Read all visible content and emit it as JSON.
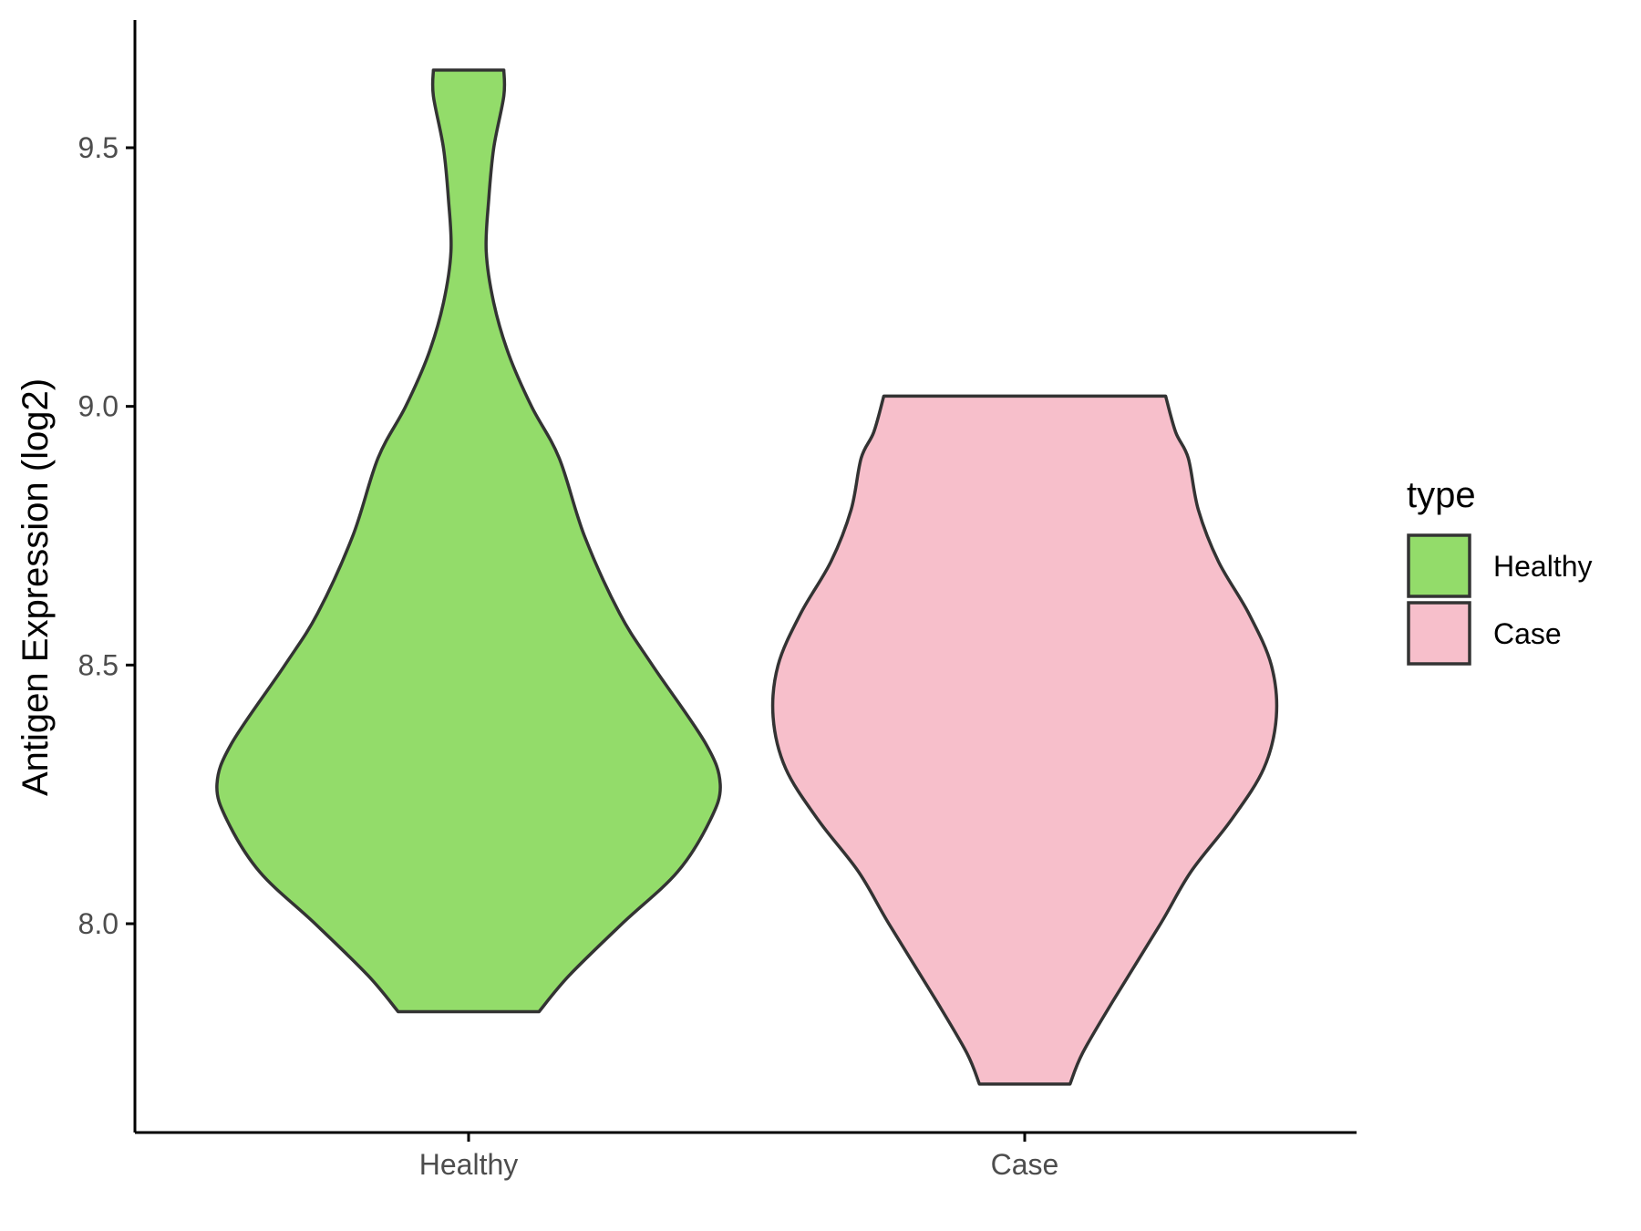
{
  "chart_data": {
    "type": "violin",
    "ylabel": "Antigen Expression (log2)",
    "xlabel": "",
    "ylim": [
      7.6,
      9.75
    ],
    "yticks": [
      8.0,
      8.5,
      9.0,
      9.5
    ],
    "ytick_labels": [
      "8.0",
      "8.5",
      "9.0",
      "9.5"
    ],
    "categories": [
      "Healthy",
      "Case"
    ],
    "legend": {
      "title": "type",
      "position": "right",
      "items": [
        {
          "label": "Healthy",
          "color": "#93dc6a"
        },
        {
          "label": "Case",
          "color": "#f7bfcb"
        }
      ]
    },
    "series": [
      {
        "category": "Healthy",
        "color": "#93dc6a",
        "min": 7.83,
        "max": 9.65,
        "profile": [
          [
            7.83,
            0.28
          ],
          [
            7.9,
            0.4
          ],
          [
            8.0,
            0.61
          ],
          [
            8.1,
            0.83
          ],
          [
            8.2,
            0.96
          ],
          [
            8.27,
            1.0
          ],
          [
            8.35,
            0.94
          ],
          [
            8.5,
            0.73
          ],
          [
            8.6,
            0.6
          ],
          [
            8.75,
            0.46
          ],
          [
            8.9,
            0.36
          ],
          [
            9.0,
            0.25
          ],
          [
            9.1,
            0.16
          ],
          [
            9.2,
            0.1
          ],
          [
            9.3,
            0.07
          ],
          [
            9.4,
            0.08
          ],
          [
            9.5,
            0.1
          ],
          [
            9.6,
            0.14
          ],
          [
            9.65,
            0.14
          ]
        ]
      },
      {
        "category": "Case",
        "color": "#f7bfcb",
        "min": 7.69,
        "max": 9.02,
        "profile": [
          [
            7.69,
            0.18
          ],
          [
            7.75,
            0.23
          ],
          [
            7.85,
            0.35
          ],
          [
            8.0,
            0.54
          ],
          [
            8.1,
            0.66
          ],
          [
            8.2,
            0.82
          ],
          [
            8.3,
            0.95
          ],
          [
            8.4,
            1.0
          ],
          [
            8.5,
            0.98
          ],
          [
            8.6,
            0.89
          ],
          [
            8.7,
            0.77
          ],
          [
            8.8,
            0.69
          ],
          [
            8.9,
            0.65
          ],
          [
            8.95,
            0.6
          ],
          [
            9.02,
            0.56
          ]
        ]
      }
    ]
  }
}
